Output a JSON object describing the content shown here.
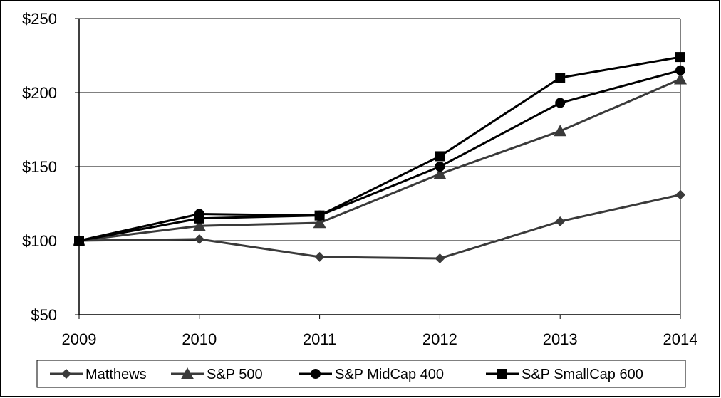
{
  "chart_data": {
    "type": "line",
    "title": "",
    "xlabel": "",
    "ylabel": "",
    "categories": [
      "2009",
      "2010",
      "2011",
      "2012",
      "2013",
      "2014"
    ],
    "ylim": [
      50,
      250
    ],
    "yticks": [
      50,
      100,
      150,
      200,
      250
    ],
    "ytick_labels": [
      "$50",
      "$100",
      "$150",
      "$200",
      "$250"
    ],
    "grid": "horizontal",
    "legend_position": "bottom",
    "series": [
      {
        "name": "Matthews",
        "marker": "diamond",
        "color": "#3a3a3a",
        "values": [
          100,
          101,
          89,
          88,
          113,
          131
        ]
      },
      {
        "name": "S&P 500",
        "marker": "triangle",
        "color": "#3a3a3a",
        "values": [
          100,
          110,
          112,
          145,
          174,
          209
        ]
      },
      {
        "name": "S&P MidCap 400",
        "marker": "circle",
        "color": "#000000",
        "values": [
          100,
          118,
          117,
          150,
          193,
          215
        ]
      },
      {
        "name": "S&P SmallCap 600",
        "marker": "square",
        "color": "#000000",
        "values": [
          100,
          115,
          117,
          157,
          210,
          224
        ]
      }
    ]
  }
}
